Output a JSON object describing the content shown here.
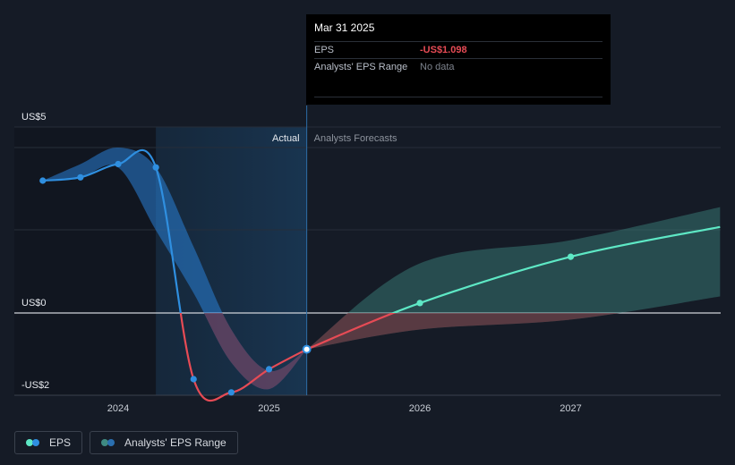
{
  "chart_data": {
    "type": "line",
    "y_ticks": [
      {
        "label": "US$5",
        "value": 5
      },
      {
        "label": "US$0",
        "value": 0
      },
      {
        "label": "-US$2",
        "value": -2
      }
    ],
    "x_ticks": [
      {
        "label": "2024",
        "value": 2024.0
      },
      {
        "label": "2025",
        "value": 2025.0
      },
      {
        "label": "2026",
        "value": 2026.0
      },
      {
        "label": "2027",
        "value": 2027.0
      }
    ],
    "ylim": [
      -2,
      5
    ],
    "xlim": [
      2023.5,
      2027.99
    ],
    "region_labels": {
      "actual": "Actual",
      "forecast": "Analysts Forecasts"
    },
    "actual_start": 2024.25,
    "forecast_start": 2025.25,
    "series": [
      {
        "name": "EPS",
        "color": "#2f8fe0",
        "negative_color": "#e64b55",
        "points": [
          [
            2023.5,
            4.0
          ],
          [
            2023.75,
            4.1
          ],
          [
            2024.0,
            4.5
          ],
          [
            2024.25,
            4.4
          ],
          [
            2024.5,
            -2.0
          ],
          [
            2024.75,
            -2.4
          ],
          [
            2025.0,
            -1.7
          ],
          [
            2025.25,
            -1.098
          ]
        ]
      },
      {
        "name": "EPS forecast",
        "color": "#5ee8c5",
        "points": [
          [
            2025.25,
            -1.098
          ],
          [
            2026.0,
            0.3
          ],
          [
            2027.0,
            1.7
          ],
          [
            2027.99,
            2.6
          ]
        ]
      }
    ],
    "range_bands": [
      {
        "name": "Analysts' EPS Range (historic)",
        "color": "#2a7fd6",
        "upper": [
          [
            2023.5,
            4.0
          ],
          [
            2023.75,
            4.5
          ],
          [
            2024.0,
            5.0
          ],
          [
            2024.25,
            4.4
          ],
          [
            2024.5,
            2.0
          ],
          [
            2024.75,
            -0.5
          ],
          [
            2025.0,
            -1.75
          ],
          [
            2025.25,
            -1.1
          ]
        ],
        "lower": [
          [
            2023.5,
            4.0
          ],
          [
            2023.75,
            4.1
          ],
          [
            2024.0,
            4.4
          ],
          [
            2024.25,
            2.5
          ],
          [
            2024.5,
            0.6
          ],
          [
            2024.75,
            -1.5
          ],
          [
            2025.0,
            -2.3
          ],
          [
            2025.25,
            -1.098
          ]
        ]
      },
      {
        "name": "Analysts' EPS Range (forecast)",
        "color": "#3f8a82",
        "upper": [
          [
            2025.25,
            -1.098
          ],
          [
            2026.0,
            1.5
          ],
          [
            2027.0,
            2.2
          ],
          [
            2027.99,
            3.2
          ]
        ],
        "lower": [
          [
            2025.25,
            -1.098
          ],
          [
            2026.0,
            -0.5
          ],
          [
            2027.0,
            -0.2
          ],
          [
            2027.99,
            0.5
          ]
        ]
      }
    ]
  },
  "tooltip": {
    "date": "Mar 31 2025",
    "eps_label": "EPS",
    "eps_value": "-US$1.098",
    "range_label": "Analysts' EPS Range",
    "range_value": "No data"
  },
  "legend": [
    {
      "label": "EPS",
      "colors": [
        "#5ee8c5",
        "#2f8fe0"
      ]
    },
    {
      "label": "Analysts' EPS Range",
      "colors": [
        "#3f8a82",
        "#2a6fb0"
      ]
    }
  ]
}
